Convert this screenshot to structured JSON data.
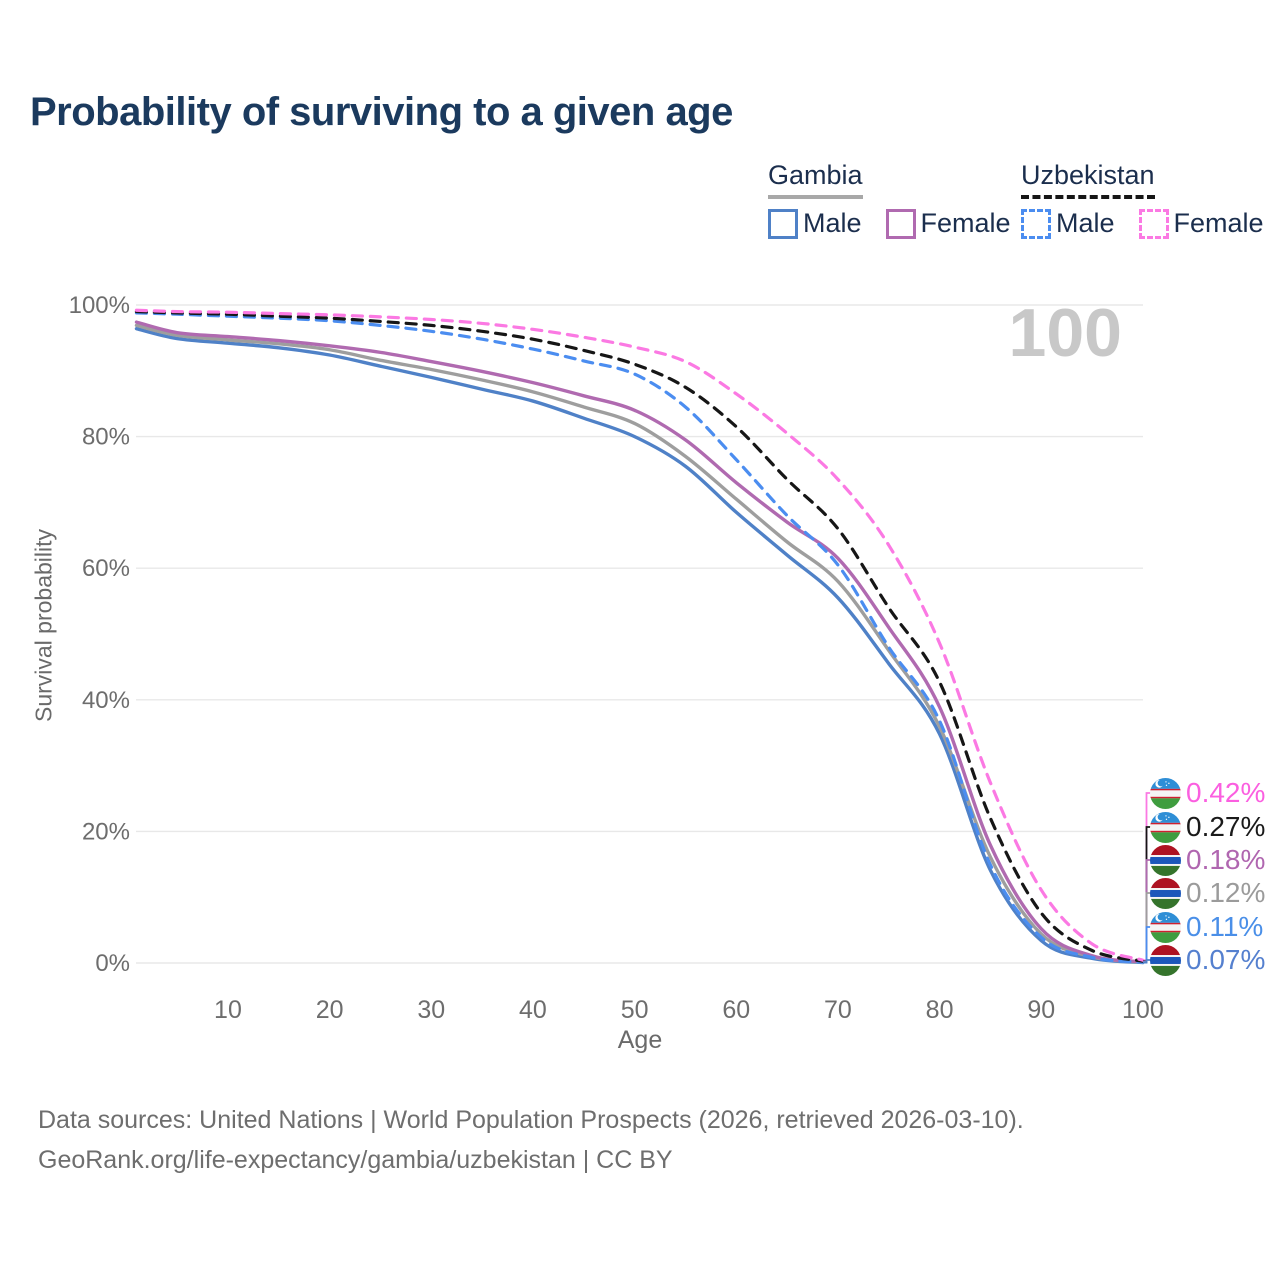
{
  "title": "Probability of surviving to a given age",
  "watermark": "100",
  "axes": {
    "x_label": "Age",
    "y_label": "Survival probability",
    "x_ticks": [
      "10",
      "20",
      "30",
      "40",
      "50",
      "60",
      "70",
      "80",
      "90",
      "100"
    ],
    "y_ticks": [
      "0%",
      "20%",
      "40%",
      "60%",
      "80%",
      "100%"
    ]
  },
  "legend": {
    "groups": [
      {
        "label": "Gambia",
        "underline_style": "solid",
        "underline_color": "#a8a8a8",
        "items": [
          {
            "label": "Male",
            "color": "#4f81c7",
            "dashed": false
          },
          {
            "label": "Female",
            "color": "#b06ab0",
            "dashed": false
          }
        ]
      },
      {
        "label": "Uzbekistan",
        "underline_style": "dashed",
        "underline_color": "#161616",
        "items": [
          {
            "label": "Male",
            "color": "#4b8df0",
            "dashed": true
          },
          {
            "label": "Female",
            "color": "#fb79e3",
            "dashed": true
          }
        ]
      }
    ]
  },
  "chart_data": {
    "type": "line",
    "title": "Probability of surviving to a given age",
    "xlabel": "Age",
    "ylabel": "Survival probability",
    "xlim": [
      1,
      100
    ],
    "ylim": [
      0,
      100
    ],
    "grid": "horizontal",
    "legend_position": "top-right",
    "x": [
      1,
      5,
      10,
      15,
      20,
      25,
      30,
      35,
      40,
      45,
      50,
      55,
      60,
      65,
      70,
      75,
      80,
      85,
      90,
      95,
      100
    ],
    "series": [
      {
        "key": "gm_male",
        "name": "Gambia Male",
        "country": "gm",
        "color": "#4f81c7",
        "dash": false,
        "end_label": "0.07%",
        "values": [
          96.4,
          94.9,
          94.2,
          93.5,
          92.4,
          90.7,
          89.0,
          87.2,
          85.4,
          82.8,
          80.0,
          75.5,
          68.5,
          62.0,
          55.5,
          45.5,
          34.8,
          14.1,
          3.4,
          0.7,
          0.07
        ]
      },
      {
        "key": "gm_both",
        "name": "Gambia",
        "country": "gm",
        "color": "#9e9e9e",
        "dash": false,
        "end_label": "0.12%",
        "values": [
          96.9,
          95.4,
          94.7,
          94.1,
          93.2,
          91.6,
          90.2,
          88.6,
          86.8,
          84.5,
          82.0,
          77.0,
          70.5,
          64.0,
          58.0,
          47.5,
          35.9,
          16.1,
          4.4,
          0.95,
          0.12
        ]
      },
      {
        "key": "gm_female",
        "name": "Gambia Female",
        "country": "gm",
        "color": "#b06ab0",
        "dash": false,
        "end_label": "0.18%",
        "values": [
          97.4,
          95.8,
          95.2,
          94.6,
          93.8,
          92.8,
          91.4,
          89.9,
          88.2,
          86.2,
          84.0,
          79.5,
          73.0,
          67.0,
          61.5,
          51.0,
          38.9,
          17.9,
          5.2,
          1.1,
          0.18
        ]
      },
      {
        "key": "uz_male",
        "name": "Uzbekistan Male",
        "country": "uz",
        "color": "#4b8df0",
        "dash": true,
        "end_label": "0.11%",
        "values": [
          98.8,
          98.6,
          98.3,
          98.0,
          97.6,
          96.9,
          96.0,
          94.8,
          93.3,
          91.5,
          89.5,
          84.5,
          76.5,
          68.0,
          60.5,
          48.0,
          36.8,
          14.9,
          3.9,
          0.85,
          0.11
        ]
      },
      {
        "key": "uz_both",
        "name": "Uzbekistan",
        "country": "uz",
        "color": "#161616",
        "dash": true,
        "end_label": "0.27%",
        "values": [
          99.0,
          98.8,
          98.6,
          98.3,
          98.0,
          97.5,
          96.9,
          96.0,
          94.8,
          93.1,
          91.0,
          87.5,
          81.5,
          73.5,
          66.0,
          54.0,
          42.7,
          22.0,
          7.6,
          1.9,
          0.27
        ]
      },
      {
        "key": "uz_female",
        "name": "Uzbekistan Female",
        "country": "uz",
        "color": "#fb79e3",
        "dash": true,
        "end_label": "0.42%",
        "values": [
          99.2,
          99.0,
          98.9,
          98.7,
          98.5,
          98.2,
          97.8,
          97.2,
          96.3,
          95.1,
          93.6,
          91.4,
          86.5,
          80.5,
          73.5,
          63.5,
          48.6,
          27.4,
          11.1,
          2.9,
          0.42
        ]
      }
    ]
  },
  "end_labels": [
    {
      "text": "0.42%",
      "country": "uz",
      "series": "uz_female",
      "color": "#fb5fe0"
    },
    {
      "text": "0.27%",
      "country": "uz",
      "series": "uz_both",
      "color": "#1a1a1a"
    },
    {
      "text": "0.18%",
      "country": "gm",
      "series": "gm_female",
      "color": "#b066b0"
    },
    {
      "text": "0.12%",
      "country": "gm",
      "series": "gm_both",
      "color": "#9b9b9b"
    },
    {
      "text": "0.11%",
      "country": "uz",
      "series": "uz_male",
      "color": "#4a8fe8"
    },
    {
      "text": "0.07%",
      "country": "gm",
      "series": "gm_male",
      "color": "#5580cf"
    }
  ],
  "footer": {
    "line1": "Data sources: United Nations | World Population Prospects (2026, retrieved 2026-03-10).",
    "line2": "GeoRank.org/life-expectancy/gambia/uzbekistan | CC BY"
  }
}
